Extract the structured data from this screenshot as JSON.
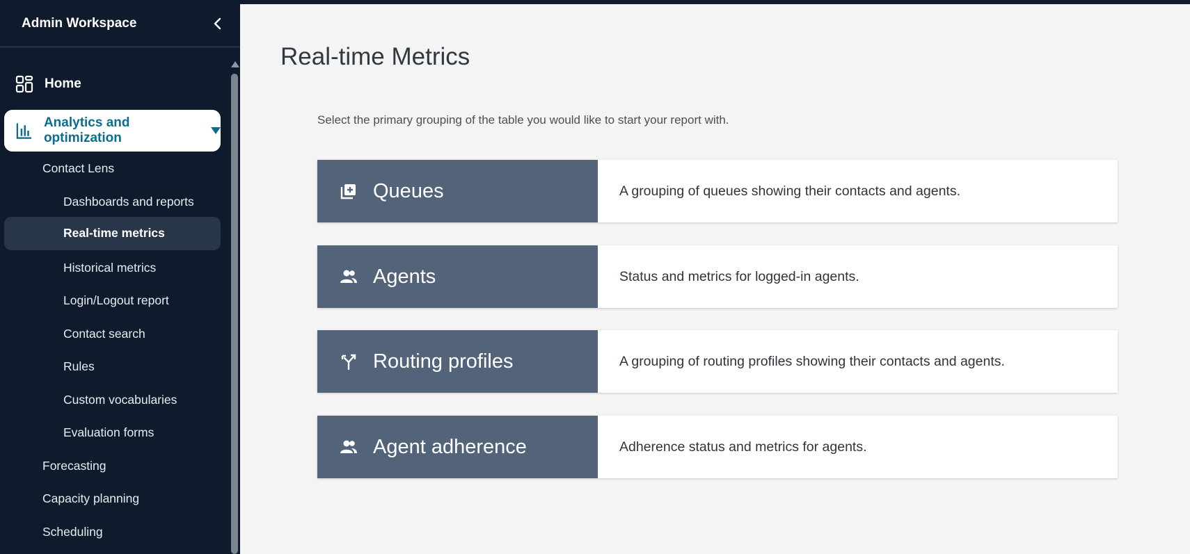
{
  "sidebar": {
    "title": "Admin Workspace",
    "home_label": "Home",
    "analytics_label": "Analytics and optimization",
    "contact_lens_label": "Contact Lens",
    "items": [
      {
        "label": "Dashboards and reports"
      },
      {
        "label": "Real-time metrics"
      },
      {
        "label": "Historical metrics"
      },
      {
        "label": "Login/Logout report"
      },
      {
        "label": "Contact search"
      },
      {
        "label": "Rules"
      },
      {
        "label": "Custom vocabularies"
      },
      {
        "label": "Evaluation forms"
      }
    ],
    "forecasting_label": "Forecasting",
    "capacity_label": "Capacity planning",
    "scheduling_label": "Scheduling"
  },
  "main": {
    "title": "Real-time Metrics",
    "intro": "Select the primary grouping of the table you would like to start your report with.",
    "cards": [
      {
        "label": "Queues",
        "icon": "queue-add-icon",
        "description": "A grouping of queues showing their contacts and agents."
      },
      {
        "label": "Agents",
        "icon": "people-icon",
        "description": "Status and metrics for logged-in agents."
      },
      {
        "label": "Routing profiles",
        "icon": "routing-fork-icon",
        "description": "A grouping of routing profiles showing their contacts and agents."
      },
      {
        "label": "Agent adherence",
        "icon": "people-icon",
        "description": "Adherence status and metrics for agents."
      }
    ]
  },
  "colors": {
    "sidebar_bg": "#0f1b2d",
    "accent": "#0a6e8c",
    "card_header": "#536379",
    "main_bg": "#f4f4f4"
  }
}
